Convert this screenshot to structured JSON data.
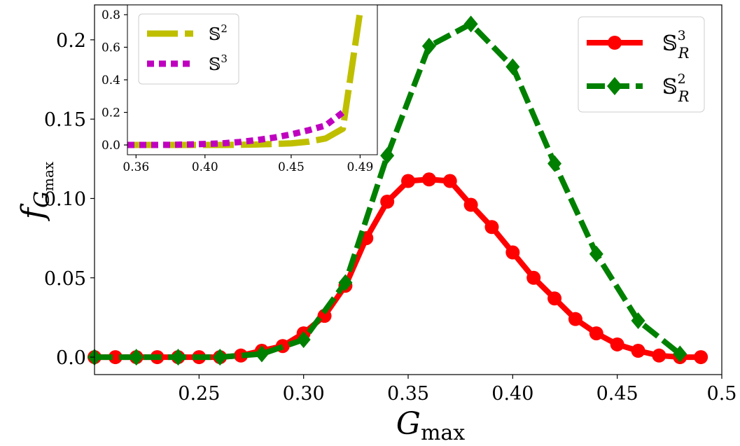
{
  "chart_data": [
    {
      "id": "main",
      "type": "line",
      "xlabel": "G",
      "xlabel_sub": "max",
      "ylabel": "f",
      "ylabel_sub": "G",
      "ylabel_subsub": "max",
      "xlim": [
        0.2,
        0.5
      ],
      "ylim": [
        -0.011,
        0.222
      ],
      "xticks": [
        0.25,
        0.3,
        0.35,
        0.4,
        0.45,
        0.5
      ],
      "xtick_labels": [
        "0.25",
        "0.30",
        "0.35",
        "0.40",
        "0.45",
        "0.5"
      ],
      "yticks": [
        0.0,
        0.05,
        0.1,
        0.15,
        0.2
      ],
      "ytick_labels": [
        "0.0",
        "0.05",
        "0.10",
        "0.15",
        "0.2"
      ],
      "legend_position": "top-right",
      "series": [
        {
          "name": "S_R^3",
          "legend_letter": "𝕊",
          "legend_sup": "3",
          "legend_sub": "R",
          "color": "#ff0000",
          "style": "solid",
          "marker": "circle",
          "x": [
            0.2,
            0.21,
            0.22,
            0.23,
            0.24,
            0.25,
            0.26,
            0.27,
            0.28,
            0.29,
            0.3,
            0.31,
            0.32,
            0.33,
            0.34,
            0.35,
            0.36,
            0.37,
            0.38,
            0.39,
            0.4,
            0.41,
            0.42,
            0.43,
            0.44,
            0.45,
            0.46,
            0.47,
            0.48,
            0.49
          ],
          "values": [
            0.0,
            0.0,
            0.0,
            0.0,
            0.0,
            0.0,
            0.0,
            0.001,
            0.004,
            0.007,
            0.015,
            0.026,
            0.045,
            0.075,
            0.098,
            0.111,
            0.112,
            0.111,
            0.096,
            0.082,
            0.066,
            0.05,
            0.037,
            0.024,
            0.015,
            0.008,
            0.004,
            0.001,
            0.0,
            0.0
          ]
        },
        {
          "name": "S_R^2",
          "legend_letter": "𝕊",
          "legend_sup": "2",
          "legend_sub": "R",
          "color": "#008000",
          "style": "dashed",
          "marker": "diamond",
          "x": [
            0.2,
            0.22,
            0.24,
            0.26,
            0.28,
            0.3,
            0.32,
            0.34,
            0.36,
            0.38,
            0.4,
            0.42,
            0.44,
            0.46,
            0.48
          ],
          "values": [
            0.0,
            0.0,
            0.0,
            0.0,
            0.002,
            0.011,
            0.047,
            0.127,
            0.196,
            0.21,
            0.183,
            0.122,
            0.065,
            0.023,
            0.002
          ]
        }
      ]
    },
    {
      "id": "inset",
      "type": "line",
      "xlim": [
        0.355,
        0.5
      ],
      "ylim": [
        -0.06,
        0.86
      ],
      "xticks": [
        0.36,
        0.4,
        0.45,
        0.49
      ],
      "xtick_labels": [
        "0.36",
        "0.40",
        "0.45",
        "0.49"
      ],
      "yticks": [
        0.0,
        0.2,
        0.4,
        0.6,
        0.8
      ],
      "ytick_labels": [
        "0.0",
        "0.2",
        "0.4",
        "0.6",
        "0.8"
      ],
      "legend_position": "top-left",
      "series": [
        {
          "name": "S^2",
          "legend_letter": "𝕊",
          "legend_sup": "2",
          "color": "#bfbf00",
          "style": "dashed",
          "x": [
            0.355,
            0.36,
            0.37,
            0.38,
            0.39,
            0.4,
            0.41,
            0.42,
            0.43,
            0.44,
            0.45,
            0.46,
            0.47,
            0.48,
            0.49
          ],
          "values": [
            0.0,
            0.0,
            0.0,
            0.0,
            0.0,
            0.0,
            0.0,
            0.001,
            0.003,
            0.006,
            0.01,
            0.02,
            0.04,
            0.1,
            0.82
          ]
        },
        {
          "name": "S^3",
          "legend_letter": "𝕊",
          "legend_sup": "3",
          "color": "#bf00bf",
          "style": "dotted",
          "x": [
            0.355,
            0.36,
            0.37,
            0.38,
            0.39,
            0.4,
            0.41,
            0.42,
            0.43,
            0.44,
            0.45,
            0.46,
            0.47,
            0.48
          ],
          "values": [
            0.0,
            0.0,
            0.0,
            0.001,
            0.003,
            0.006,
            0.01,
            0.018,
            0.03,
            0.045,
            0.065,
            0.09,
            0.12,
            0.2
          ]
        }
      ]
    }
  ]
}
